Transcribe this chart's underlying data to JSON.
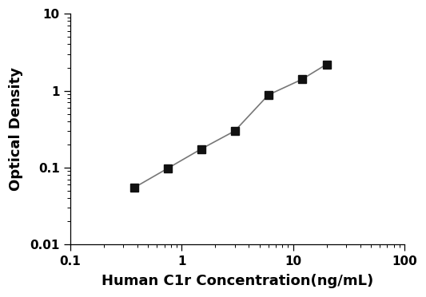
{
  "x_values": [
    0.375,
    0.75,
    1.5,
    3.0,
    6.0,
    12.0,
    20.0
  ],
  "y_values": [
    0.055,
    0.098,
    0.175,
    0.3,
    0.88,
    1.4,
    2.2
  ],
  "xlabel": "Human C1r Concentration(ng/mL)",
  "ylabel": "Optical Density",
  "xlim": [
    0.1,
    100
  ],
  "ylim": [
    0.01,
    10
  ],
  "x_ticks": [
    0.1,
    1,
    10,
    100
  ],
  "x_tick_labels": [
    "0.1",
    "1",
    "10",
    "100"
  ],
  "y_ticks": [
    0.01,
    0.1,
    1,
    10
  ],
  "y_tick_labels": [
    "0.01",
    "0.1",
    "1",
    "10"
  ],
  "line_color": "#777777",
  "marker_color": "#111111",
  "marker": "s",
  "marker_size": 7,
  "line_width": 1.2,
  "background_color": "#ffffff",
  "xlabel_fontsize": 13,
  "ylabel_fontsize": 13,
  "tick_fontsize": 11
}
